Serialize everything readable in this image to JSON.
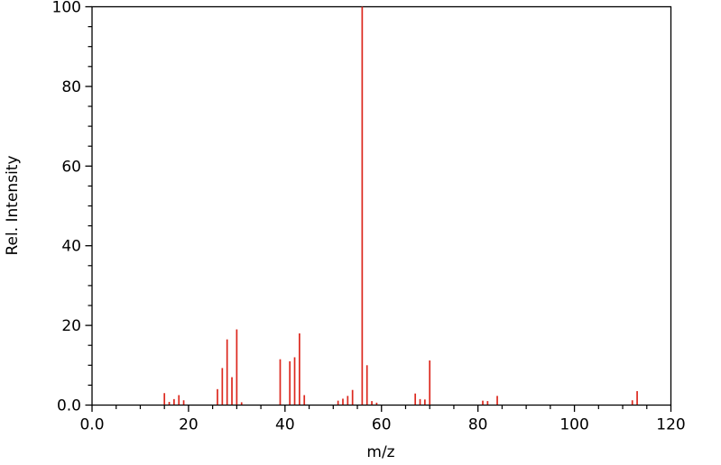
{
  "figure": {
    "background": "#ffffff",
    "axis_color": "#000000"
  },
  "chart_data": {
    "type": "bar",
    "subtype": "mass-spectrum-stick-plot",
    "title": "",
    "xlabel": "m/z",
    "ylabel": "Rel. Intensity",
    "xlim": [
      0,
      120
    ],
    "ylim": [
      0,
      100
    ],
    "grid": false,
    "legend_position": "none",
    "x_major_ticks": [
      0,
      20,
      40,
      60,
      80,
      100,
      120
    ],
    "x_tick_labels": [
      "0.0",
      "20",
      "40",
      "60",
      "80",
      "100",
      "120"
    ],
    "x_minor_step": 5,
    "y_major_ticks": [
      0,
      20,
      40,
      60,
      80,
      100
    ],
    "y_tick_labels": [
      "0.0",
      "20",
      "40",
      "60",
      "80",
      "100"
    ],
    "y_minor_step": 5,
    "bar_color": "#dc281e",
    "peaks": [
      [
        15,
        3.0
      ],
      [
        16,
        0.8
      ],
      [
        17,
        1.5
      ],
      [
        18,
        2.5
      ],
      [
        19,
        1.2
      ],
      [
        26,
        4.0
      ],
      [
        27,
        9.3
      ],
      [
        28,
        16.5
      ],
      [
        29,
        7.0
      ],
      [
        30,
        19.0
      ],
      [
        31,
        0.7
      ],
      [
        39,
        11.5
      ],
      [
        41,
        11.0
      ],
      [
        42,
        12.0
      ],
      [
        43,
        18.0
      ],
      [
        44,
        2.5
      ],
      [
        51,
        1.1
      ],
      [
        52,
        1.6
      ],
      [
        53,
        2.3
      ],
      [
        54,
        3.8
      ],
      [
        56,
        100.0
      ],
      [
        57,
        10.0
      ],
      [
        58,
        1.0
      ],
      [
        59,
        0.6
      ],
      [
        67,
        2.9
      ],
      [
        68,
        1.5
      ],
      [
        69,
        1.4
      ],
      [
        70,
        11.2
      ],
      [
        81,
        1.1
      ],
      [
        82,
        1.0
      ],
      [
        84,
        2.3
      ],
      [
        112,
        1.2
      ],
      [
        113,
        3.5
      ]
    ]
  }
}
